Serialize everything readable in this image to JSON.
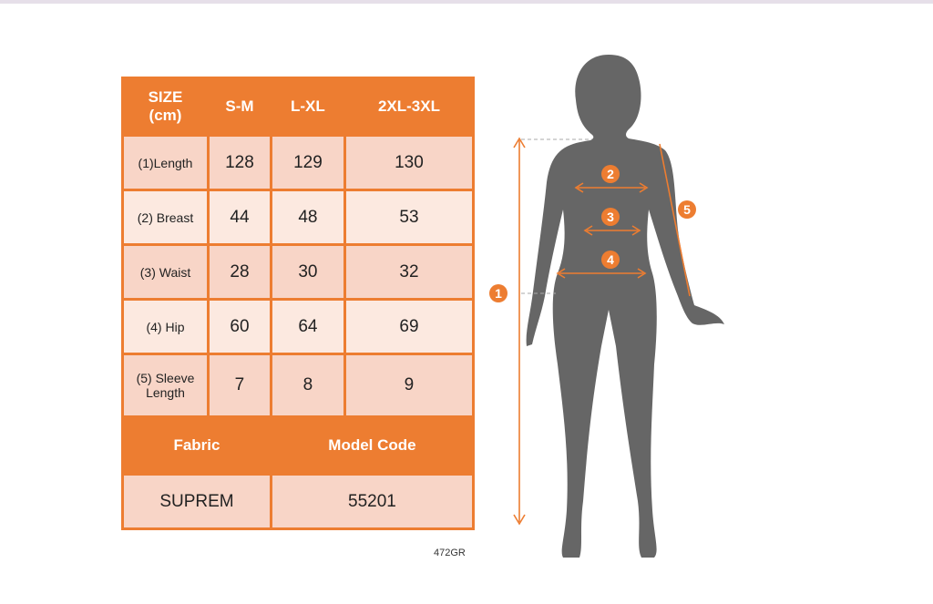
{
  "table": {
    "header": [
      "SIZE\n(cm)",
      "S-M",
      "L-XL",
      "2XL-3XL"
    ],
    "header_line1": "SIZE",
    "header_line2": "(cm)",
    "sizes": [
      "S-M",
      "L-XL",
      "2XL-3XL"
    ],
    "rows": [
      {
        "label": "(1)Length",
        "values": [
          "128",
          "129",
          "130"
        ]
      },
      {
        "label": "(2) Breast",
        "values": [
          "44",
          "48",
          "53"
        ]
      },
      {
        "label": "(3) Waist",
        "values": [
          "28",
          "30",
          "32"
        ]
      },
      {
        "label": "(4) Hip",
        "values": [
          "60",
          "64",
          "69"
        ]
      },
      {
        "label_line1": "(5) Sleeve",
        "label_line2": "Length",
        "values": [
          "7",
          "8",
          "9"
        ]
      }
    ],
    "fabric_label": "Fabric",
    "model_code_label": "Model Code",
    "fabric_value": "SUPREM",
    "model_code_value": "55201"
  },
  "product_code": "472GR",
  "figure": {
    "markers": [
      "1",
      "2",
      "3",
      "4",
      "5"
    ],
    "silhouette_color": "#666666",
    "accent_color": "#ed7d31"
  }
}
